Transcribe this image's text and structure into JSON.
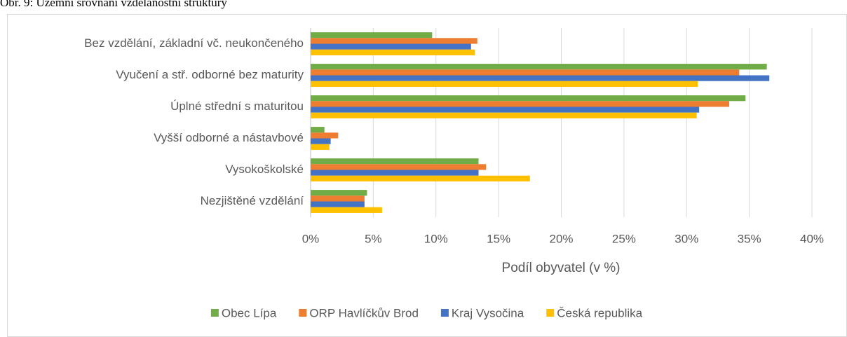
{
  "chart_data": {
    "type": "bar",
    "orientation": "horizontal",
    "title": "Obr. 9: Územní srovnání vzdělanostní struktury",
    "x_label": "Podíl obyvatel (v %)",
    "categories": [
      "Bez vzdělání, základní vč. neukončeného",
      "Vyučení a stř. odborné bez maturity",
      "Úplné střední s maturitou",
      "Vyšší odborné a nástavbové",
      "Vysokoškolské",
      "Nezjištěné vzdělání"
    ],
    "series": [
      {
        "name": "Obec Lípa",
        "color": "#70ad47",
        "values": [
          9.7,
          36.4,
          34.7,
          1.1,
          13.4,
          4.5
        ]
      },
      {
        "name": "ORP Havlíčkův Brod",
        "color": "#ed7d31",
        "values": [
          13.3,
          34.2,
          33.4,
          2.2,
          14.0,
          4.3
        ]
      },
      {
        "name": "Kraj Vysočina",
        "color": "#4472c4",
        "values": [
          12.8,
          36.6,
          31.0,
          1.6,
          13.4,
          4.3
        ]
      },
      {
        "name": "Česká republika",
        "color": "#ffc000",
        "values": [
          13.1,
          30.9,
          30.8,
          1.5,
          17.5,
          5.7
        ]
      }
    ],
    "xlim": [
      0,
      40
    ],
    "xticks": [
      {
        "value": 0,
        "label": "0%"
      },
      {
        "value": 5,
        "label": "5%"
      },
      {
        "value": 10,
        "label": "10%"
      },
      {
        "value": 15,
        "label": "15%"
      },
      {
        "value": 20,
        "label": "20%"
      },
      {
        "value": 25,
        "label": "25%"
      },
      {
        "value": 30,
        "label": "30%"
      },
      {
        "value": 35,
        "label": "35%"
      },
      {
        "value": 40,
        "label": "40%"
      }
    ],
    "grid": true,
    "legend": "bottom"
  }
}
